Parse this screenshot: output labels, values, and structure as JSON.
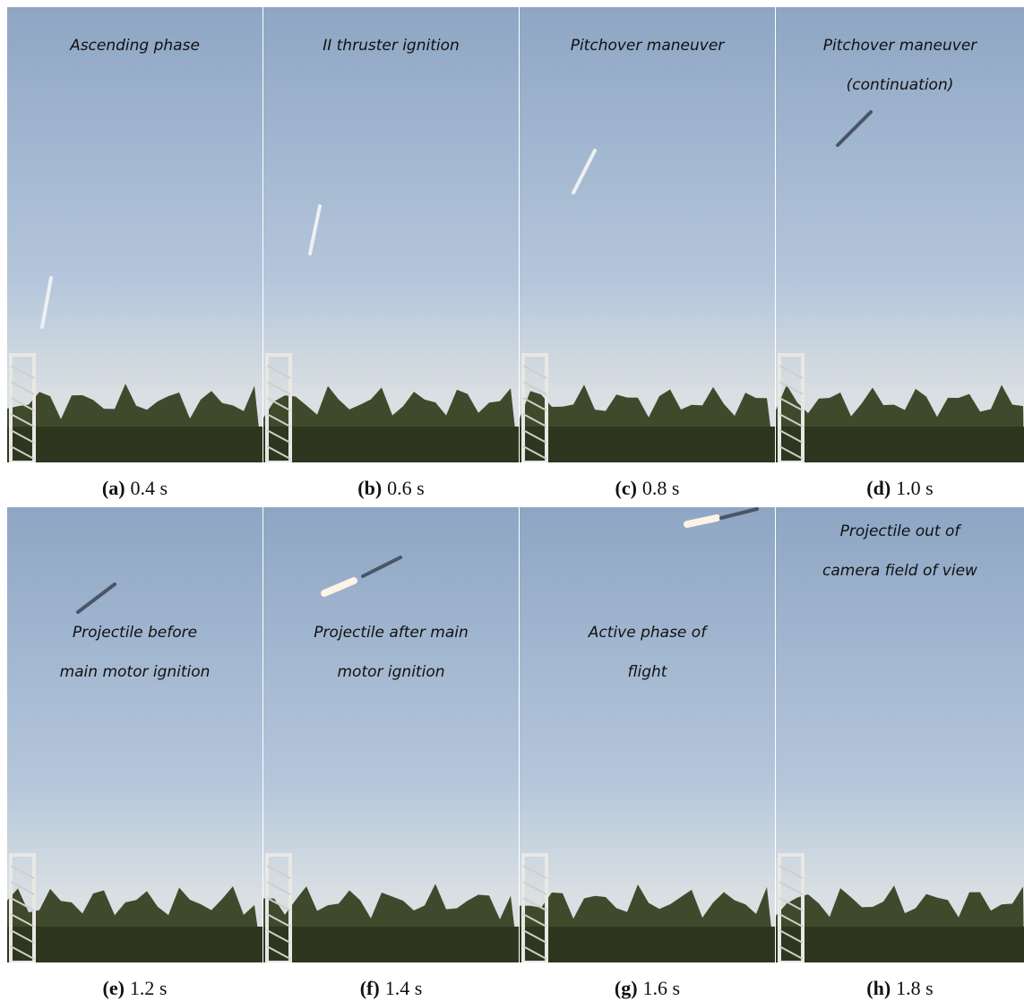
{
  "panels": [
    {
      "label": "(a)",
      "time": "0.4 s",
      "annotation": [
        "Ascending phase"
      ]
    },
    {
      "label": "(b)",
      "time": "0.6 s",
      "annotation": [
        "II thruster ignition"
      ]
    },
    {
      "label": "(c)",
      "time": "0.8 s",
      "annotation": [
        "Pitchover maneuver"
      ]
    },
    {
      "label": "(d)",
      "time": "1.0 s",
      "annotation": [
        "Pitchover maneuver",
        "(continuation)"
      ]
    },
    {
      "label": "(e)",
      "time": "1.2 s",
      "annotation": [
        "Projectile before",
        "main motor ignition"
      ]
    },
    {
      "label": "(f)",
      "time": "1.4 s",
      "annotation": [
        "Projectile after main",
        "motor ignition"
      ]
    },
    {
      "label": "(g)",
      "time": "1.6 s",
      "annotation": [
        "Active phase of",
        "flight"
      ]
    },
    {
      "label": "(h)",
      "time": "1.8 s",
      "annotation": [
        "Projectile out of",
        "camera field of view"
      ]
    }
  ]
}
